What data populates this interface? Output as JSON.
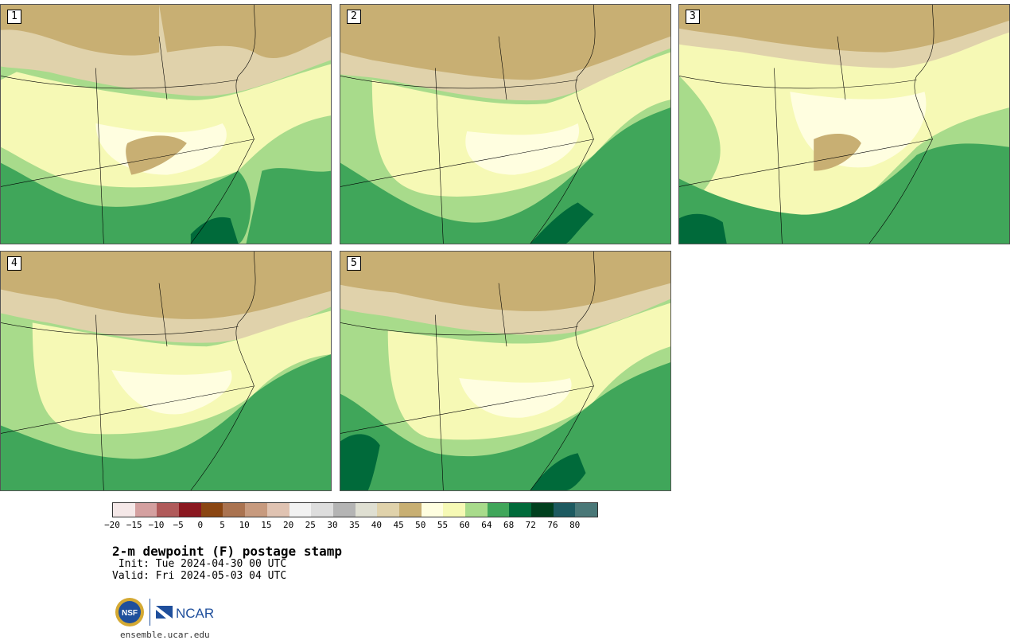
{
  "panels": [
    {
      "label": "1"
    },
    {
      "label": "2"
    },
    {
      "label": "3"
    },
    {
      "label": "4"
    },
    {
      "label": "5"
    }
  ],
  "colorbar": {
    "colors": [
      "#f5e8e8",
      "#d4a0a0",
      "#b05a5a",
      "#8a1820",
      "#8a4612",
      "#aa7350",
      "#c79a7e",
      "#e0c3b2",
      "#f2f2f2",
      "#dddddd",
      "#b4b4b4",
      "#dfdfd2",
      "#e0d2ab",
      "#c8af73",
      "#fffee0",
      "#f6f9b5",
      "#a8db8b",
      "#40a65a",
      "#006a3a",
      "#00401e",
      "#1d5a60",
      "#4a7878"
    ],
    "tick_labels": [
      "−20",
      "−15",
      "−10",
      "−5",
      "0",
      "5",
      "10",
      "15",
      "20",
      "25",
      "30",
      "35",
      "40",
      "45",
      "50",
      "55",
      "60",
      "64",
      "68",
      "72",
      "76",
      "80"
    ]
  },
  "title": "2-m dewpoint (F) postage stamp",
  "init": " Init: Tue 2024-04-30 00 UTC",
  "valid": "Valid: Fri 2024-05-03 04 UTC",
  "logos": {
    "nsf": "NSF",
    "ncar": "NCAR"
  },
  "site": "ensemble.ucar.edu"
}
